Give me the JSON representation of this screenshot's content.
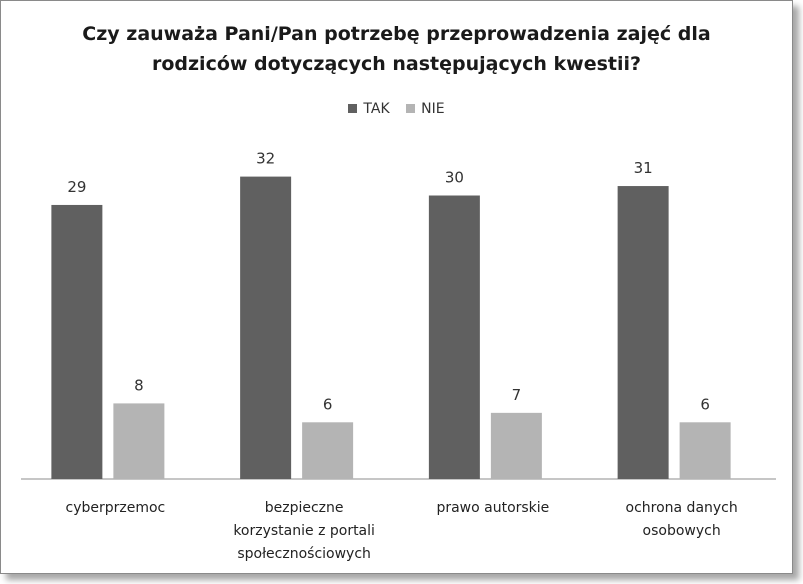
{
  "chart_data": {
    "type": "bar",
    "title_lines": [
      "Czy zauważa Pani/Pan potrzebę przeprowadzenia zajęć dla",
      "rodziców dotyczących następujących kwestii?"
    ],
    "categories": [
      [
        "cyberprzemoc"
      ],
      [
        "bezpieczne",
        "korzystanie z portali",
        "społecznościowych"
      ],
      [
        "prawo autorskie"
      ],
      [
        "ochrona danych",
        "osobowych"
      ]
    ],
    "series": [
      {
        "name": "TAK",
        "color": "#606060",
        "values": [
          29,
          32,
          30,
          31
        ]
      },
      {
        "name": "NIE",
        "color": "#b4b4b4",
        "values": [
          8,
          6,
          7,
          6
        ]
      }
    ],
    "ylim": [
      0,
      35
    ],
    "grid": false,
    "legend_position": "top-center",
    "xlabel": "",
    "ylabel": ""
  }
}
